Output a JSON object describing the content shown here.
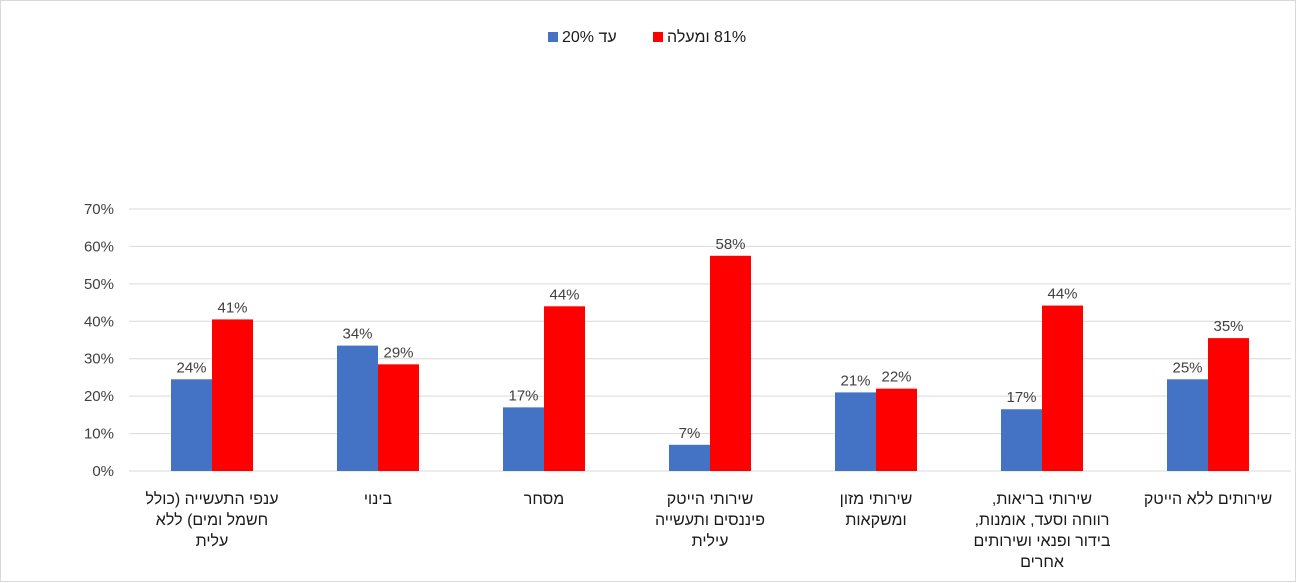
{
  "chart_data": {
    "type": "bar",
    "title": "",
    "xlabel": "",
    "ylabel": "",
    "ylim": [
      0,
      0.7
    ],
    "yticks": [
      "0%",
      "10%",
      "20%",
      "30%",
      "40%",
      "50%",
      "60%",
      "70%"
    ],
    "grid": true,
    "legend_position": "top-center",
    "categories": [
      [
        "ענפי התעשייה (כולל",
        "חשמל ומים) ללא",
        "עלית"
      ],
      [
        "בינוי"
      ],
      [
        "מסחר"
      ],
      [
        "שירותי הייטק",
        "פיננסים ותעשייה",
        "עילית"
      ],
      [
        "שירותי מזון",
        "ומשקאות"
      ],
      [
        "שירותי בריאות,",
        "רווחה וסעד, אומנות,",
        "בידור ופנאי ושירותים",
        "אחרים"
      ],
      [
        "שירותים ללא הייטק"
      ]
    ],
    "series": [
      {
        "name": "עד 20%",
        "color": "#4472c4",
        "values": [
          0.245,
          0.335,
          0.17,
          0.07,
          0.21,
          0.165,
          0.245
        ],
        "labels": [
          "24%",
          "34%",
          "17%",
          "7%",
          "21%",
          "17%",
          "25%"
        ]
      },
      {
        "name": "81% ומעלה",
        "color": "#ff0000",
        "values": [
          0.405,
          0.285,
          0.44,
          0.575,
          0.22,
          0.442,
          0.355
        ],
        "labels": [
          "41%",
          "29%",
          "44%",
          "58%",
          "22%",
          "44%",
          "35%"
        ]
      }
    ]
  }
}
